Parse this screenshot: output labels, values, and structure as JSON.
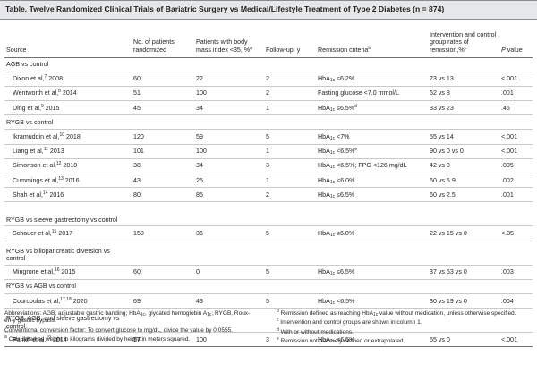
{
  "title": "Table. Twelve Randomized Clinical Trials of Bariatric Surgery vs Medical/Lifestyle Treatment of Type 2 Diabetes (n = 874)",
  "headers": {
    "source": "Source",
    "patients": "No. of patients randomized",
    "bmi": "Patients with body mass index <35, %",
    "bmi_sup": "a",
    "followup": "Follow-up, y",
    "remission": "Remission criteria",
    "remission_sup": "b",
    "rates": "Intervention and control group rates of remission,%",
    "rates_sup": "c",
    "pvalue": "P value"
  },
  "groups": [
    {
      "label": "AGB vs control",
      "rows": [
        {
          "author": "Dixon et al,",
          "ref": "7",
          "year": "2008",
          "n": "60",
          "bmi": "22",
          "bmi_sup": "",
          "fu": "2",
          "crit": [
            [
              "t",
              "HbA"
            ],
            [
              "sub",
              "1c"
            ],
            [
              "t",
              " ≤6.2%"
            ]
          ],
          "rate": "73 vs 13",
          "p": "<.001"
        },
        {
          "author": "Wentworth et al,",
          "ref": "8",
          "year": "2014",
          "n": "51",
          "bmi": "100",
          "bmi_sup": "",
          "fu": "2",
          "crit": [
            [
              "t",
              "Fasting glucose <7.0 mmol/L"
            ]
          ],
          "rate": "52 vs 8",
          "p": ".001"
        },
        {
          "author": "Ding et al,",
          "ref": "9",
          "year": "2015",
          "n": "45",
          "bmi": "34",
          "bmi_sup": "",
          "fu": "1",
          "crit": [
            [
              "t",
              "HbA"
            ],
            [
              "sub",
              "1c"
            ],
            [
              "t",
              " ≤6.5%"
            ],
            [
              "sup",
              "d"
            ]
          ],
          "rate": "33 vs 23",
          "p": ".46"
        }
      ]
    },
    {
      "label": "RYGB vs control",
      "rows": [
        {
          "author": "Ikramuddin et al,",
          "ref": "10",
          "year": "2018",
          "n": "120",
          "bmi": "59",
          "bmi_sup": "",
          "fu": "5",
          "crit": [
            [
              "t",
              "HbA"
            ],
            [
              "sub",
              "1c"
            ],
            [
              "t",
              " <7%"
            ]
          ],
          "rate": "55 vs 14",
          "p": "<.001"
        },
        {
          "author": "Liang et al,",
          "ref": "11",
          "year": "2013",
          "n": "101",
          "bmi": "100",
          "bmi_sup": "",
          "fu": "1",
          "crit": [
            [
              "t",
              "HbA"
            ],
            [
              "sub",
              "1c"
            ],
            [
              "t",
              " <6.5%"
            ],
            [
              "sup",
              "e"
            ]
          ],
          "rate": "90 vs 0 vs 0",
          "p": "<.001"
        },
        {
          "author": "Simonson et al,",
          "ref": "12",
          "year": "2018",
          "n": "38",
          "bmi": "34",
          "bmi_sup": "",
          "fu": "3",
          "crit": [
            [
              "t",
              "HbA"
            ],
            [
              "sub",
              "1c"
            ],
            [
              "t",
              " <6.5%; FPG <126 mg/dL"
            ]
          ],
          "rate": "42 vs 0",
          "p": ".005"
        },
        {
          "author": "Cummings et al,",
          "ref": "13",
          "year": "2016",
          "n": "43",
          "bmi": "25",
          "bmi_sup": "",
          "fu": "1",
          "crit": [
            [
              "t",
              "HbA"
            ],
            [
              "sub",
              "1c"
            ],
            [
              "t",
              " <6.0%"
            ]
          ],
          "rate": "60 vs 5.9",
          "p": ".002"
        },
        {
          "author": "Shah et al,",
          "ref": "14",
          "year": "2016",
          "n": "80",
          "bmi": "85",
          "bmi_sup": "",
          "fu": "2",
          "crit": [
            [
              "t",
              "HbA"
            ],
            [
              "sub",
              "1c"
            ],
            [
              "t",
              " ≤6.5%"
            ]
          ],
          "rate": "60 vs 2.5",
          "p": ".001"
        }
      ]
    },
    {
      "label": "RYGB vs sleeve gastrectomy vs control",
      "rows": [
        {
          "author": "Schauer et al,",
          "ref": "15",
          "year": "2017",
          "n": "150",
          "bmi": "36",
          "bmi_sup": "",
          "fu": "5",
          "crit": [
            [
              "t",
              "HbA"
            ],
            [
              "sub",
              "1c"
            ],
            [
              "t",
              " ≤6.0%"
            ]
          ],
          "rate": "22 vs 15 vs 0",
          "p": "<.05"
        }
      ]
    },
    {
      "label": "RYGB vs biliopancreatic diversion vs control",
      "rows": [
        {
          "author": "Mingrone et al,",
          "ref": "16",
          "year": "2015",
          "n": "60",
          "bmi": "0",
          "bmi_sup": "",
          "fu": "5",
          "crit": [
            [
              "t",
              "HbA"
            ],
            [
              "sub",
              "1c"
            ],
            [
              "t",
              " ≤6.5%"
            ]
          ],
          "rate": "37 vs 63 vs 0",
          "p": ".003"
        }
      ]
    },
    {
      "label": "RYGB vs AGB vs control",
      "rows": [
        {
          "author": "Courcoulas et al,",
          "ref": "17,18",
          "year": "2020",
          "n": "69",
          "bmi": "43",
          "bmi_sup": "",
          "fu": "5",
          "crit": [
            [
              "t",
              "HbA"
            ],
            [
              "sub",
              "1c"
            ],
            [
              "t",
              " <6.5%"
            ]
          ],
          "rate": "30 vs 19 vs 0",
          "p": ".004"
        }
      ]
    },
    {
      "label": "RYGB, AGB, and sleeve gastrectomy vs control",
      "rows": [
        {
          "author": "Parikh et al,",
          "ref": "19",
          "year": "2014",
          "n": "57",
          "bmi": "100",
          "bmi_sup": "",
          "fu": "3",
          "crit": [
            [
              "t",
              "HbA"
            ],
            [
              "sub",
              "1c"
            ],
            [
              "t",
              " <6.5%"
            ]
          ],
          "rate": "65 vs 0",
          "p": "<.001"
        }
      ]
    }
  ],
  "footnotes": {
    "left": [
      [
        [
          "t",
          "Abbreviations: AGB, adjustable gastric banding; HbA"
        ],
        [
          "sub",
          "1c"
        ],
        [
          "t",
          ", glycated hemoglobin A"
        ],
        [
          "sub",
          "1c"
        ],
        [
          "t",
          "; RYGB, Roux-en-y gastric bypass."
        ]
      ],
      [
        [
          "t",
          "Conventional conversion factor: To convert glucose to mg/dL, divide the value by 0.0555."
        ]
      ],
      [
        [
          "sup",
          "a"
        ],
        [
          "t",
          " Calculated as weight in kilograms divided by height in meters squared."
        ]
      ]
    ],
    "right": [
      [
        [
          "sup",
          "b"
        ],
        [
          "t",
          " Remission defined as reaching HbA"
        ],
        [
          "sub",
          "1c"
        ],
        [
          "t",
          " value without medication, unless otherwise specified."
        ]
      ],
      [
        [
          "sup",
          "c"
        ],
        [
          "t",
          " Intervention and control groups are shown in column 1."
        ]
      ],
      [
        [
          "sup",
          "d"
        ],
        [
          "t",
          " With or without medications."
        ]
      ],
      [
        [
          "sup",
          "e"
        ],
        [
          "t",
          " Remission not precisely defined or extrapolated."
        ]
      ]
    ]
  }
}
